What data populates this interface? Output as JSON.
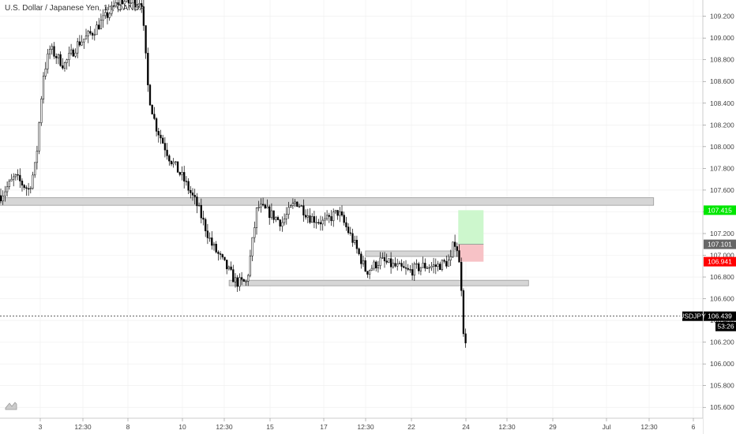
{
  "header": {
    "title": "U.S. Dollar / Japanese Yen, 1h, OANDA"
  },
  "colors": {
    "candle": "#000000",
    "zone_fill": "#d6d6d6",
    "zone_stroke": "#9a9a9a",
    "target_fill": "#cdf7cd",
    "stop_fill": "#f7c2c6",
    "last_price_tag": "#000000",
    "target_tag": "#00e600",
    "entry_tag": "#666666",
    "stop_tag": "#ff0000",
    "grid": "#eeeeee"
  },
  "icons": {
    "logo": "tradingview-logo-icon"
  },
  "chart_data": {
    "type": "candlestick",
    "symbol": "USDJPY",
    "interval": "1h",
    "ylim": [
      105.5,
      109.35
    ],
    "y_ticks": [
      "105.600",
      "105.800",
      "106.000",
      "106.200",
      "106.400",
      "106.600",
      "106.800",
      "107.000",
      "107.200",
      "107.400",
      "107.600",
      "107.800",
      "108.000",
      "108.200",
      "108.400",
      "108.600",
      "108.800",
      "109.000",
      "109.200"
    ],
    "x_ticks": [
      "3",
      "12:30",
      "8",
      "10",
      "12:30",
      "15",
      "17",
      "12:30",
      "22",
      "24",
      "12:30",
      "29",
      "Jul",
      "12:30",
      "6"
    ],
    "price_path": [
      [
        0,
        107.55
      ],
      [
        0.02,
        107.72
      ],
      [
        0.04,
        107.6
      ],
      [
        0.05,
        107.85
      ],
      [
        0.06,
        108.65
      ],
      [
        0.07,
        108.9
      ],
      [
        0.09,
        108.75
      ],
      [
        0.11,
        108.95
      ],
      [
        0.13,
        109.05
      ],
      [
        0.15,
        109.2
      ],
      [
        0.17,
        109.35
      ],
      [
        0.185,
        109.32
      ],
      [
        0.2,
        109.35
      ],
      [
        0.21,
        108.5
      ],
      [
        0.22,
        108.2
      ],
      [
        0.24,
        107.9
      ],
      [
        0.26,
        107.7
      ],
      [
        0.28,
        107.45
      ],
      [
        0.3,
        107.1
      ],
      [
        0.32,
        106.9
      ],
      [
        0.335,
        106.75
      ],
      [
        0.35,
        106.75
      ],
      [
        0.365,
        107.45
      ],
      [
        0.38,
        107.4
      ],
      [
        0.4,
        107.3
      ],
      [
        0.42,
        107.5
      ],
      [
        0.44,
        107.35
      ],
      [
        0.46,
        107.3
      ],
      [
        0.48,
        107.4
      ],
      [
        0.5,
        107.15
      ],
      [
        0.52,
        106.85
      ],
      [
        0.54,
        106.95
      ],
      [
        0.56,
        106.9
      ],
      [
        0.58,
        106.85
      ],
      [
        0.6,
        106.9
      ],
      [
        0.62,
        106.9
      ],
      [
        0.64,
        106.95
      ],
      [
        0.645,
        107.15
      ],
      [
        0.65,
        107.05
      ],
      [
        0.655,
        106.75
      ],
      [
        0.66,
        106.1
      ],
      [
        0.667,
        106.44
      ]
    ],
    "last_price": 106.439,
    "countdown": "53:26",
    "horizontal_zones": [
      {
        "name": "resistance-zone",
        "low": 107.46,
        "high": 107.53,
        "x_start": 0.0,
        "x_end": 0.93
      },
      {
        "name": "mid-support-zone",
        "low": 106.99,
        "high": 107.04,
        "x_start": 0.52,
        "x_end": 0.66
      },
      {
        "name": "support-zone",
        "low": 106.72,
        "high": 106.77,
        "x_start": 0.326,
        "x_end": 0.752
      }
    ],
    "position": {
      "entry": 107.101,
      "target": 107.415,
      "stop": 106.941,
      "x_start": 0.652,
      "x_end": 0.688
    },
    "price_tags": {
      "target": "107.415",
      "entry": "107.101",
      "stop": "106.941",
      "last": "106.439",
      "symbol": "USDJPY",
      "countdown": "53:26"
    }
  }
}
